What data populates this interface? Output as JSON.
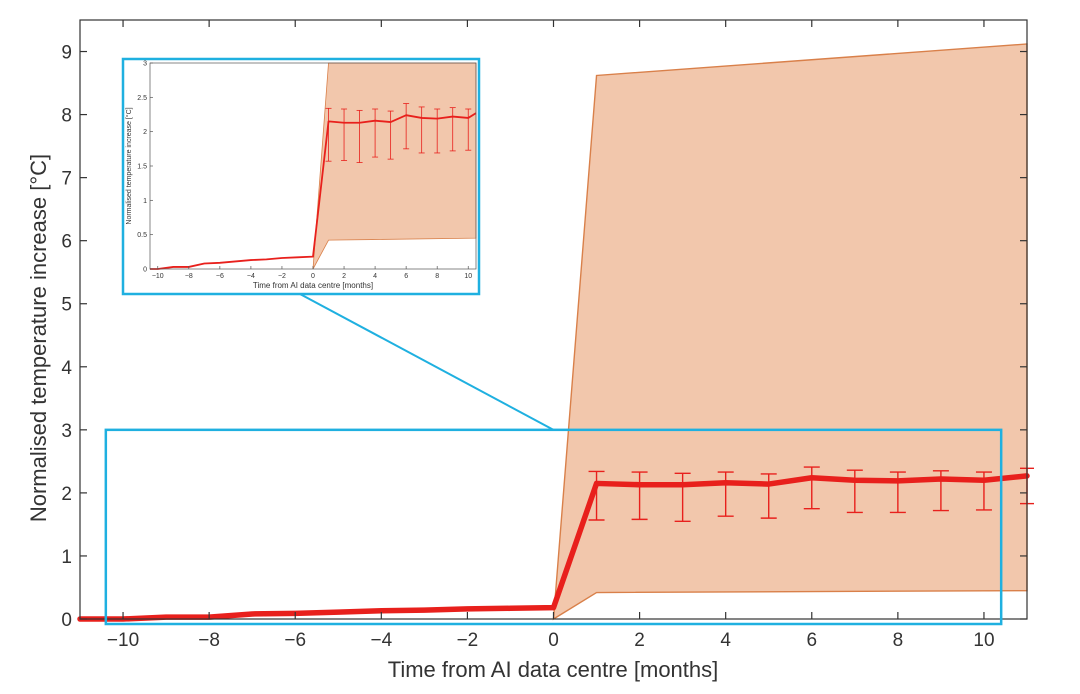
{
  "chart_data": {
    "type": "line",
    "xlabel": "Time from AI data centre [months]",
    "ylabel": "Normalised temperature increase [°C]",
    "xlim": [
      -11,
      11
    ],
    "ylim": [
      0,
      9.5
    ],
    "xticks": [
      -10,
      -8,
      -6,
      -4,
      -2,
      0,
      2,
      4,
      6,
      8,
      10
    ],
    "yticks": [
      0,
      1,
      2,
      3,
      4,
      5,
      6,
      7,
      8,
      9
    ],
    "grid": false,
    "legend": "none",
    "series": [
      {
        "x": [
          -11,
          -10,
          -9,
          -8,
          -7,
          -6,
          -5,
          -4,
          -3,
          -2,
          -1,
          0,
          1,
          2,
          3,
          4,
          5,
          6,
          7,
          8,
          9,
          10,
          11
        ],
        "y": [
          0.0,
          0.0,
          0.03,
          0.03,
          0.08,
          0.09,
          0.11,
          0.13,
          0.14,
          0.16,
          0.17,
          0.18,
          2.15,
          2.13,
          2.13,
          2.16,
          2.14,
          2.24,
          2.2,
          2.19,
          2.22,
          2.2,
          2.27
        ],
        "error_x": [
          1,
          2,
          3,
          4,
          5,
          6,
          7,
          8,
          9,
          10,
          11
        ],
        "error_low": [
          1.57,
          1.58,
          1.55,
          1.63,
          1.6,
          1.75,
          1.69,
          1.69,
          1.72,
          1.73,
          1.83
        ],
        "error_high": [
          2.34,
          2.33,
          2.31,
          2.33,
          2.3,
          2.41,
          2.36,
          2.33,
          2.35,
          2.33,
          2.39
        ]
      }
    ],
    "band": {
      "x": [
        0,
        1,
        11
      ],
      "upper": [
        0.0,
        8.62,
        9.12
      ],
      "lower": [
        0.0,
        0.42,
        0.45
      ]
    },
    "zoom_region": {
      "xlim": [
        -10.4,
        10.4
      ],
      "ylim": [
        0,
        3
      ]
    },
    "inset": {
      "xlabel": "Time from AI data centre [months]",
      "ylabel": "Normalised temperature increase [°C]",
      "xlim": [
        -10.5,
        10.5
      ],
      "ylim": [
        0,
        3
      ],
      "xticks": [
        -10,
        -8,
        -6,
        -4,
        -2,
        0,
        2,
        4,
        6,
        8,
        10
      ],
      "yticks": [
        0,
        0.5,
        1,
        1.5,
        2,
        2.5,
        3
      ],
      "band_upper": [
        0.0,
        3.0,
        3.0
      ],
      "band_lower": [
        0.0,
        0.42,
        0.45
      ]
    },
    "colors": {
      "line": "#e8201c",
      "band_fill": "#f2c7ac",
      "band_edge": "#d9804a",
      "zoom_box": "#1fb0e0",
      "axis": "#333333"
    }
  }
}
